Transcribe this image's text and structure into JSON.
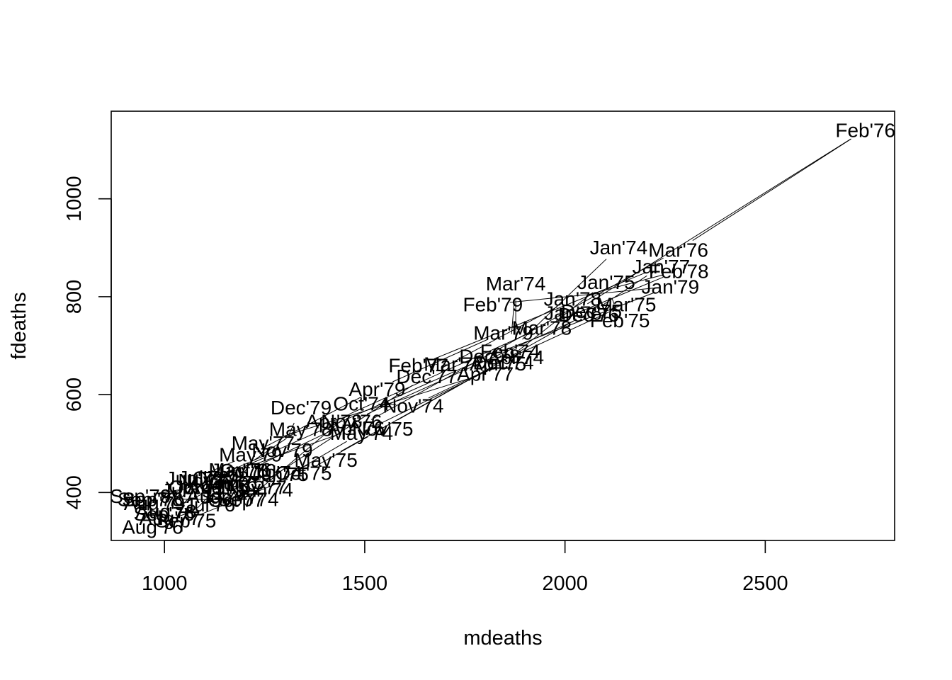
{
  "chart_data": {
    "type": "line",
    "title": "",
    "xlabel": "mdeaths",
    "ylabel": "fdeaths",
    "xlim": [
      867,
      2823
    ],
    "ylim": [
      302,
      1179
    ],
    "x_ticks": [
      1000,
      1500,
      2000,
      2500
    ],
    "x_tick_labels": [
      "1000",
      "1500",
      "2000",
      "2500"
    ],
    "y_ticks": [
      400,
      600,
      800,
      1000
    ],
    "y_tick_labels": [
      "400",
      "600",
      "800",
      "1000"
    ],
    "grid": false,
    "legend": "none",
    "series": [
      {
        "x": [
          2134,
          1863,
          1877,
          1877,
          1492,
          1249,
          1280,
          1131,
          1209,
          1492,
          1621,
          1846,
          2103,
          2137,
          2153,
          1833,
          1403,
          1288,
          1186,
          1133,
          1053,
          1347,
          1545,
          2066,
          2020,
          2750,
          2283,
          1479,
          1189,
          1160,
          1113,
          970,
          999,
          1208,
          1467,
          2059,
          2240,
          1634,
          1722,
          1801,
          1246,
          1162,
          1087,
          1013,
          959,
          1179,
          1229,
          1655,
          2019,
          2284,
          1942,
          1423,
          1340,
          1187,
          1098,
          1004,
          970,
          1140,
          1110,
          1812,
          2263,
          1820,
          1846,
          1531,
          1215,
          1075,
          1056,
          975,
          940,
          1081,
          1294,
          1341
        ],
        "y": [
          901,
          689,
          827,
          677,
          522,
          406,
          441,
          393,
          387,
          582,
          578,
          666,
          830,
          752,
          785,
          664,
          467,
          438,
          421,
          412,
          343,
          440,
          531,
          771,
          767,
          1141,
          896,
          532,
          447,
          420,
          376,
          330,
          357,
          445,
          546,
          764,
          862,
          660,
          663,
          643,
          502,
          392,
          411,
          348,
          387,
          385,
          411,
          638,
          796,
          853,
          737,
          546,
          530,
          446,
          431,
          362,
          387,
          430,
          425,
          679,
          821,
          785,
          727,
          612,
          478,
          429,
          405,
          379,
          393,
          411,
          487,
          574
        ],
        "labels": [
          "Jan'74",
          "Feb'74",
          "Mar'74",
          "Apr'74",
          "May'74",
          "Jun'74",
          "Jul'74",
          "Aug'74",
          "Sep'74",
          "Oct'74",
          "Nov'74",
          "Dec'74",
          "Jan'75",
          "Feb'75",
          "Mar'75",
          "Apr'75",
          "May'75",
          "Jun'75",
          "Jul'75",
          "Aug'75",
          "Sep'75",
          "Oct'75",
          "Nov'75",
          "Dec'75",
          "Jan'76",
          "Feb'76",
          "Mar'76",
          "Apr'76",
          "May'76",
          "Jun'76",
          "Jul'76",
          "Aug'76",
          "Sep'76",
          "Oct'76",
          "Nov'76",
          "Dec'76",
          "Jan'77",
          "Feb'77",
          "Mar'77",
          "Apr'77",
          "May'77",
          "Jun'77",
          "Jul'77",
          "Aug'77",
          "Sep'77",
          "Oct'77",
          "Nov'77",
          "Dec'77",
          "Jan'78",
          "Feb'78",
          "Mar'78",
          "Apr'78",
          "May'78",
          "Jun'78",
          "Jul'78",
          "Aug'78",
          "Sep'78",
          "Oct'78",
          "Nov'78",
          "Dec'78",
          "Jan'79",
          "Feb'79",
          "Mar'79",
          "Apr'79",
          "May'79",
          "Jun'79",
          "Jul'79",
          "Aug'79",
          "Sep'79",
          "Oct'79",
          "Nov'79",
          "Dec'79"
        ]
      }
    ]
  }
}
